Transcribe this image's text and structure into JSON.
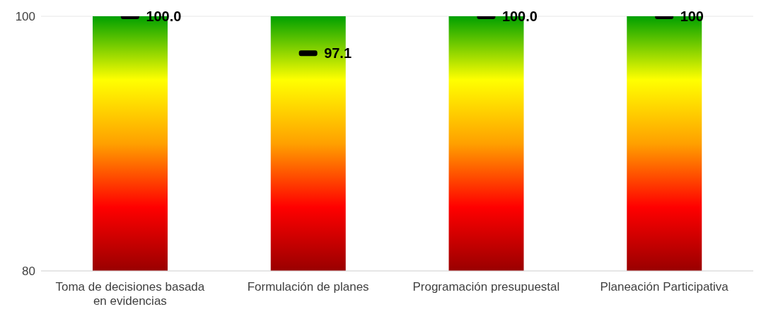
{
  "chart_data": {
    "type": "bar",
    "categories": [
      "Toma de decisiones basada en evidencias",
      "Formulación de planes",
      "Programación presupuestal",
      "Planeación Participativa"
    ],
    "series": [
      {
        "color": "#ffff00",
        "values": [
          100,
          100,
          100,
          100
        ]
      },
      {
        "type": "scatter",
        "color": "#000000",
        "values": [
          100,
          97.1,
          100,
          100
        ],
        "value_labels": [
          "100.0",
          "97.1",
          "100.0",
          "100"
        ]
      }
    ],
    "ylim": [
      80,
      100
    ],
    "yticks": [
      80,
      100
    ],
    "grid": "y",
    "legend": false,
    "marker": "square"
  }
}
